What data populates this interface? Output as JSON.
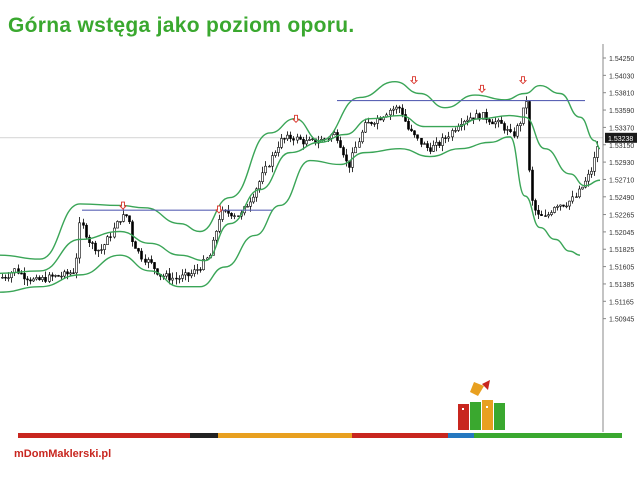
{
  "slide": {
    "title": "Górna wstęga jako poziom oporu.",
    "logo": "mDomMaklerski.pl"
  },
  "colors": {
    "title": "#3aa82f",
    "bands": "#3aa557",
    "resistance_line": "#5b63b5",
    "arrows": "#d9342b",
    "candles": "#000000",
    "footer": [
      "#c8261f",
      "#222222",
      "#e8a020",
      "#c8261f",
      "#2478c0",
      "#3aa82f"
    ]
  },
  "chart_data": {
    "type": "candlestick",
    "title": "",
    "price_axis": {
      "ticks": [
        "1.54250",
        "1.54030",
        "1.53810",
        "1.53590",
        "1.53370",
        "1.53150",
        "1.52930",
        "1.52710",
        "1.52490",
        "1.52265",
        "1.52045",
        "1.51825",
        "1.51605",
        "1.51385",
        "1.51165",
        "1.50945"
      ],
      "current_price": "1.53238",
      "ylim": [
        1.509,
        1.5437
      ]
    },
    "indicator": "Bollinger Bands",
    "close_path": [
      [
        0,
        1.5146
      ],
      [
        8,
        1.515
      ],
      [
        15,
        1.5157
      ],
      [
        22,
        1.515
      ],
      [
        35,
        1.5142
      ],
      [
        50,
        1.5147
      ],
      [
        65,
        1.515
      ],
      [
        75,
        1.5156
      ],
      [
        80,
        1.5218
      ],
      [
        90,
        1.519
      ],
      [
        100,
        1.518
      ],
      [
        110,
        1.52
      ],
      [
        120,
        1.5222
      ],
      [
        128,
        1.5226
      ],
      [
        132,
        1.5195
      ],
      [
        140,
        1.5175
      ],
      [
        150,
        1.5165
      ],
      [
        160,
        1.515
      ],
      [
        175,
        1.5145
      ],
      [
        190,
        1.515
      ],
      [
        200,
        1.516
      ],
      [
        210,
        1.5175
      ],
      [
        220,
        1.5228
      ],
      [
        230,
        1.5229
      ],
      [
        240,
        1.5225
      ],
      [
        252,
        1.525
      ],
      [
        262,
        1.5275
      ],
      [
        272,
        1.53
      ],
      [
        280,
        1.532
      ],
      [
        292,
        1.5325
      ],
      [
        305,
        1.5318
      ],
      [
        320,
        1.532
      ],
      [
        335,
        1.533
      ],
      [
        342,
        1.531
      ],
      [
        348,
        1.5285
      ],
      [
        355,
        1.531
      ],
      [
        365,
        1.534
      ],
      [
        380,
        1.535
      ],
      [
        390,
        1.536
      ],
      [
        400,
        1.5362
      ],
      [
        408,
        1.5335
      ],
      [
        418,
        1.532
      ],
      [
        428,
        1.531
      ],
      [
        438,
        1.5315
      ],
      [
        450,
        1.533
      ],
      [
        460,
        1.5345
      ],
      [
        470,
        1.535
      ],
      [
        482,
        1.5352
      ],
      [
        492,
        1.5345
      ],
      [
        502,
        1.534
      ],
      [
        512,
        1.5325
      ],
      [
        520,
        1.5345
      ],
      [
        526,
        1.5372
      ],
      [
        530,
        1.525
      ],
      [
        537,
        1.5225
      ],
      [
        545,
        1.5222
      ],
      [
        555,
        1.524
      ],
      [
        565,
        1.524
      ],
      [
        575,
        1.5248
      ],
      [
        585,
        1.5268
      ],
      [
        592,
        1.5285
      ],
      [
        598,
        1.5318
      ]
    ],
    "bollinger": {
      "upper": [
        [
          0,
          1.5175
        ],
        [
          40,
          1.517
        ],
        [
          80,
          1.524
        ],
        [
          120,
          1.5238
        ],
        [
          145,
          1.5235
        ],
        [
          180,
          1.5215
        ],
        [
          200,
          1.5205
        ],
        [
          230,
          1.5248
        ],
        [
          270,
          1.533
        ],
        [
          295,
          1.5348
        ],
        [
          320,
          1.532
        ],
        [
          360,
          1.5375
        ],
        [
          395,
          1.5395
        ],
        [
          420,
          1.538
        ],
        [
          445,
          1.5362
        ],
        [
          475,
          1.5378
        ],
        [
          505,
          1.5372
        ],
        [
          525,
          1.538
        ],
        [
          540,
          1.539
        ],
        [
          560,
          1.538
        ],
        [
          580,
          1.535
        ],
        [
          595,
          1.532
        ],
        [
          600,
          1.531
        ]
      ],
      "middle": [
        [
          0,
          1.5152
        ],
        [
          40,
          1.5155
        ],
        [
          80,
          1.5195
        ],
        [
          120,
          1.5205
        ],
        [
          150,
          1.519
        ],
        [
          180,
          1.5175
        ],
        [
          205,
          1.5168
        ],
        [
          230,
          1.5215
        ],
        [
          260,
          1.5258
        ],
        [
          290,
          1.5305
        ],
        [
          320,
          1.5318
        ],
        [
          345,
          1.5328
        ],
        [
          370,
          1.5348
        ],
        [
          400,
          1.5352
        ],
        [
          425,
          1.5338
        ],
        [
          455,
          1.5338
        ],
        [
          480,
          1.5348
        ],
        [
          510,
          1.5352
        ],
        [
          525,
          1.535
        ],
        [
          545,
          1.531
        ],
        [
          570,
          1.5278
        ],
        [
          585,
          1.5263
        ],
        [
          600,
          1.527
        ]
      ],
      "lower": [
        [
          0,
          1.5128
        ],
        [
          40,
          1.5135
        ],
        [
          80,
          1.515
        ],
        [
          120,
          1.5175
        ],
        [
          150,
          1.5155
        ],
        [
          180,
          1.5135
        ],
        [
          200,
          1.5135
        ],
        [
          225,
          1.516
        ],
        [
          255,
          1.52
        ],
        [
          280,
          1.5238
        ],
        [
          310,
          1.5295
        ],
        [
          340,
          1.529
        ],
        [
          365,
          1.5305
        ],
        [
          400,
          1.531
        ],
        [
          430,
          1.53
        ],
        [
          460,
          1.531
        ],
        [
          490,
          1.5318
        ],
        [
          510,
          1.5325
        ],
        [
          525,
          1.525
        ],
        [
          540,
          1.521
        ],
        [
          555,
          1.5195
        ],
        [
          570,
          1.518
        ],
        [
          580,
          1.5175
        ]
      ]
    },
    "resistance_lines": [
      {
        "x": [
          82,
          272
        ],
        "price": 1.5232
      },
      {
        "x": [
          337,
          585
        ],
        "price": 1.5371
      }
    ],
    "signal_arrows": [
      {
        "x": 123,
        "price": 1.5236
      },
      {
        "x": 219,
        "price": 1.5231
      },
      {
        "x": 296,
        "price": 1.5346
      },
      {
        "x": 414,
        "price": 1.5395
      },
      {
        "x": 482,
        "price": 1.5384
      },
      {
        "x": 523,
        "price": 1.5395
      }
    ]
  }
}
